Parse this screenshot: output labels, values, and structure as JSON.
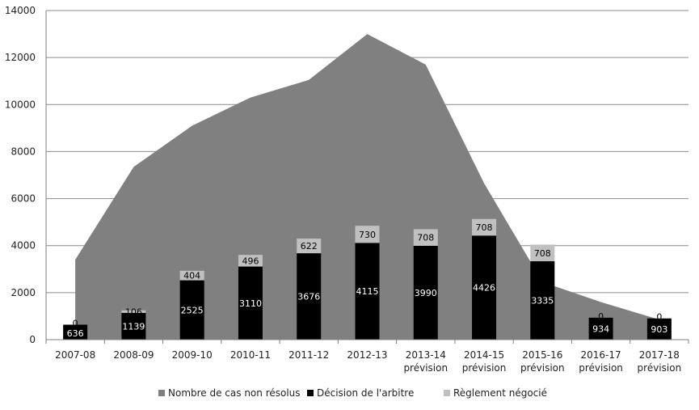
{
  "chart_data": {
    "type": "bar",
    "categories": [
      [
        "2007-08"
      ],
      [
        "2008-09"
      ],
      [
        "2009-10"
      ],
      [
        "2010-11"
      ],
      [
        "2011-12"
      ],
      [
        "2012-13"
      ],
      [
        "2013-14",
        "prévision"
      ],
      [
        "2014-15",
        "prévision"
      ],
      [
        "2015-16",
        "prévision"
      ],
      [
        "2016-17",
        "prévision"
      ],
      [
        "2017-18",
        "prévision"
      ]
    ],
    "series": [
      {
        "name": "Nombre de cas non résolus",
        "type": "area",
        "color": "#808080",
        "values": [
          3400,
          7350,
          9100,
          10300,
          11050,
          13000,
          11700,
          6650,
          2450,
          1600,
          850
        ]
      },
      {
        "name": "Décision de l'arbitre",
        "type": "stacked-bar",
        "color": "#000000",
        "values": [
          636,
          1139,
          2525,
          3110,
          3676,
          4115,
          3990,
          4426,
          3335,
          934,
          903
        ]
      },
      {
        "name": "Règlement négocié",
        "type": "stacked-bar",
        "color": "#c0c0c0",
        "values": [
          0,
          106,
          404,
          496,
          622,
          730,
          708,
          708,
          708,
          0,
          0
        ]
      }
    ],
    "ylim": [
      0,
      14000
    ],
    "yticks": [
      0,
      2000,
      4000,
      6000,
      8000,
      10000,
      12000,
      14000
    ],
    "grid": true,
    "legend_position": "bottom"
  }
}
